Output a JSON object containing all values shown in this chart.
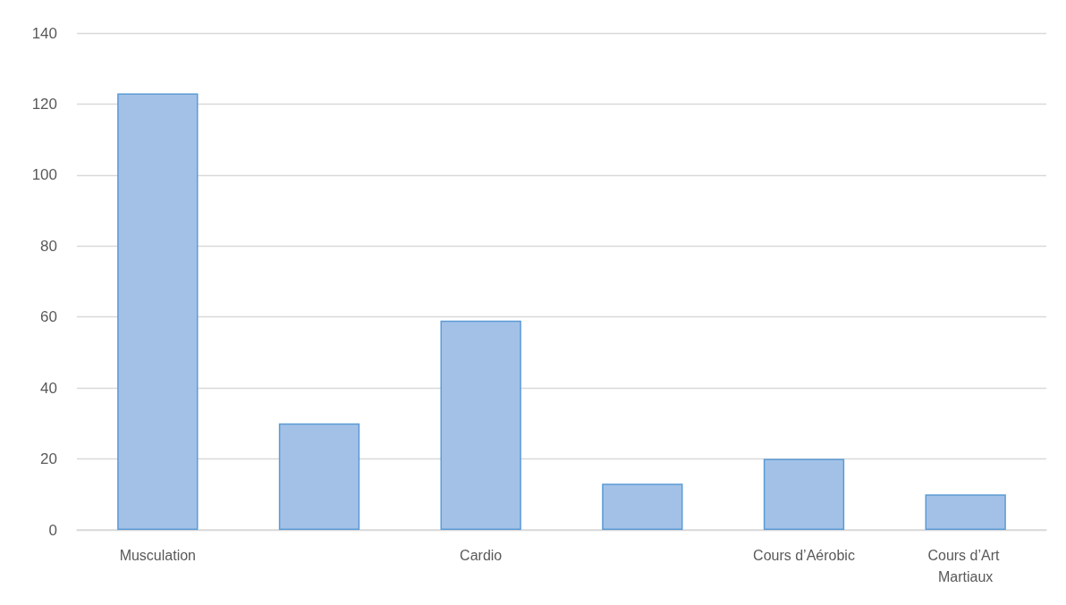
{
  "chart_data": {
    "type": "bar",
    "categories": [
      "Musculation",
      null,
      "Cardio",
      null,
      "Cours d’Aérobic",
      "Cours d’Art Martiaux"
    ],
    "values": [
      123,
      30,
      59,
      13,
      20,
      10
    ],
    "color": "#a3c1e7",
    "ylim": [
      0,
      140
    ],
    "yticks": [
      0,
      20,
      40,
      60,
      80,
      100,
      120,
      140
    ],
    "grid": "y"
  }
}
